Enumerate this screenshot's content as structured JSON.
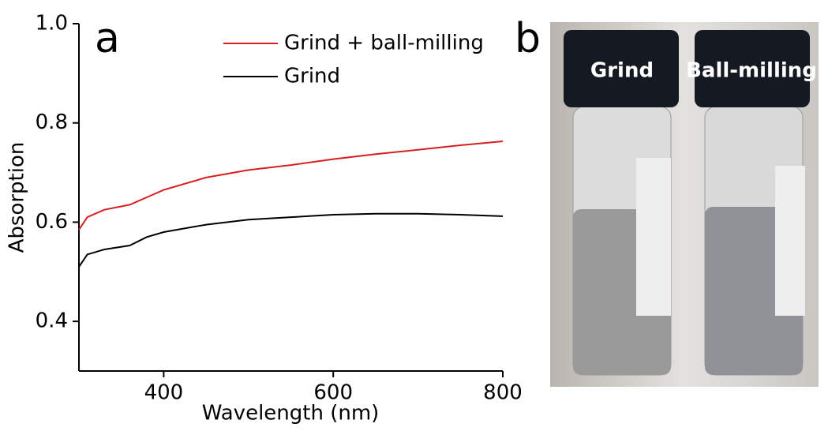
{
  "chart_data": {
    "type": "line",
    "panel_label": "a",
    "xlabel": "Wavelength (nm)",
    "ylabel": "Absorption",
    "x": [
      300,
      310,
      330,
      360,
      380,
      400,
      450,
      500,
      550,
      600,
      650,
      700,
      750,
      800
    ],
    "series": [
      {
        "name": "Grind + ball-milling",
        "color": "#d62020",
        "values": [
          0.585,
          0.61,
          0.625,
          0.635,
          0.65,
          0.665,
          0.69,
          0.705,
          0.715,
          0.727,
          0.737,
          0.746,
          0.755,
          0.763
        ]
      },
      {
        "name": "Grind",
        "color": "#000000",
        "values": [
          0.51,
          0.535,
          0.545,
          0.553,
          0.57,
          0.58,
          0.595,
          0.605,
          0.61,
          0.615,
          0.617,
          0.617,
          0.615,
          0.612
        ]
      }
    ],
    "xlim": [
      300,
      800
    ],
    "xticks": [
      400,
      600,
      800
    ],
    "ylim": [
      0.3,
      1.0
    ],
    "yticks": [
      0.4,
      0.6,
      0.8,
      {
        "value": 1,
        "label": "1.0"
      }
    ],
    "legend": "upper right"
  },
  "photo": {
    "panel_label": "b",
    "labels": [
      "Grind",
      "Ball-milling"
    ]
  }
}
